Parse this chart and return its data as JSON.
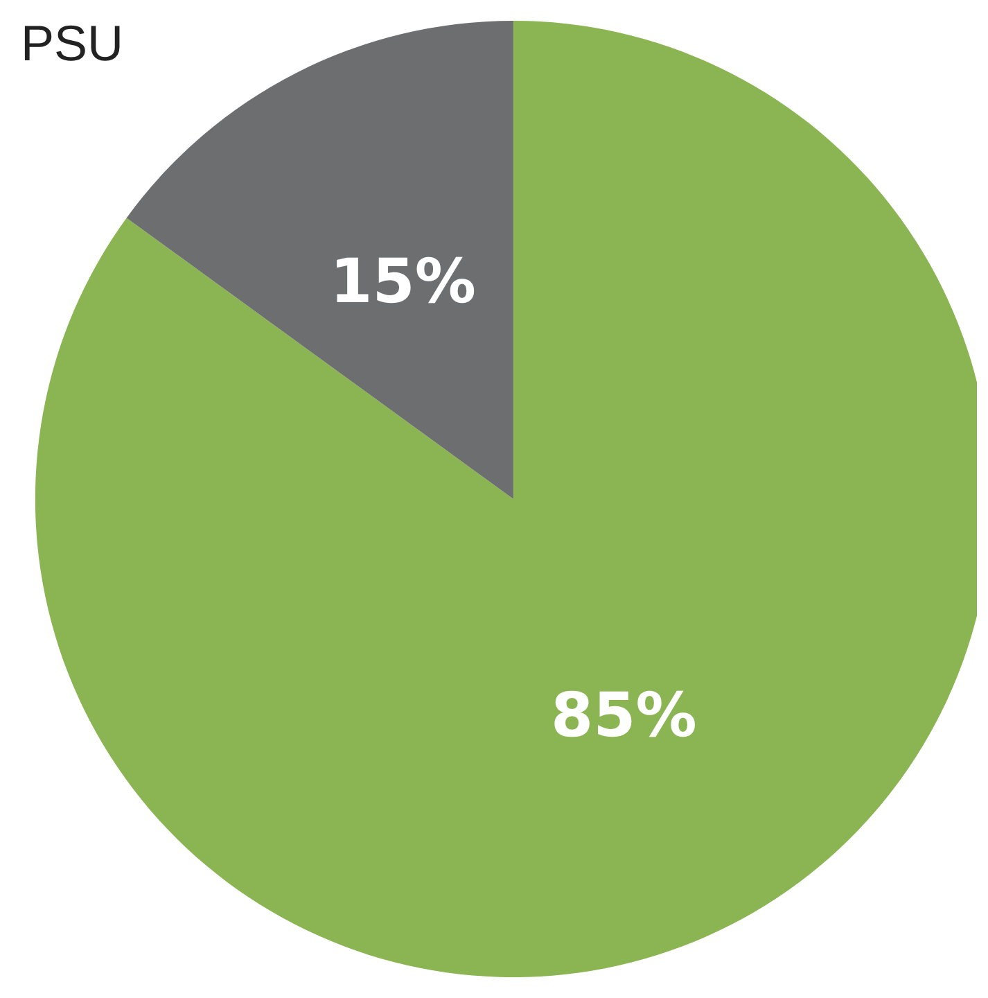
{
  "chart_data": {
    "type": "pie",
    "title": "PSU",
    "categories": [
      null,
      null
    ],
    "values": [
      85,
      15
    ],
    "colors": [
      "#8ab552",
      "#6d6e70"
    ],
    "value_labels": [
      "85%",
      "15%"
    ]
  }
}
